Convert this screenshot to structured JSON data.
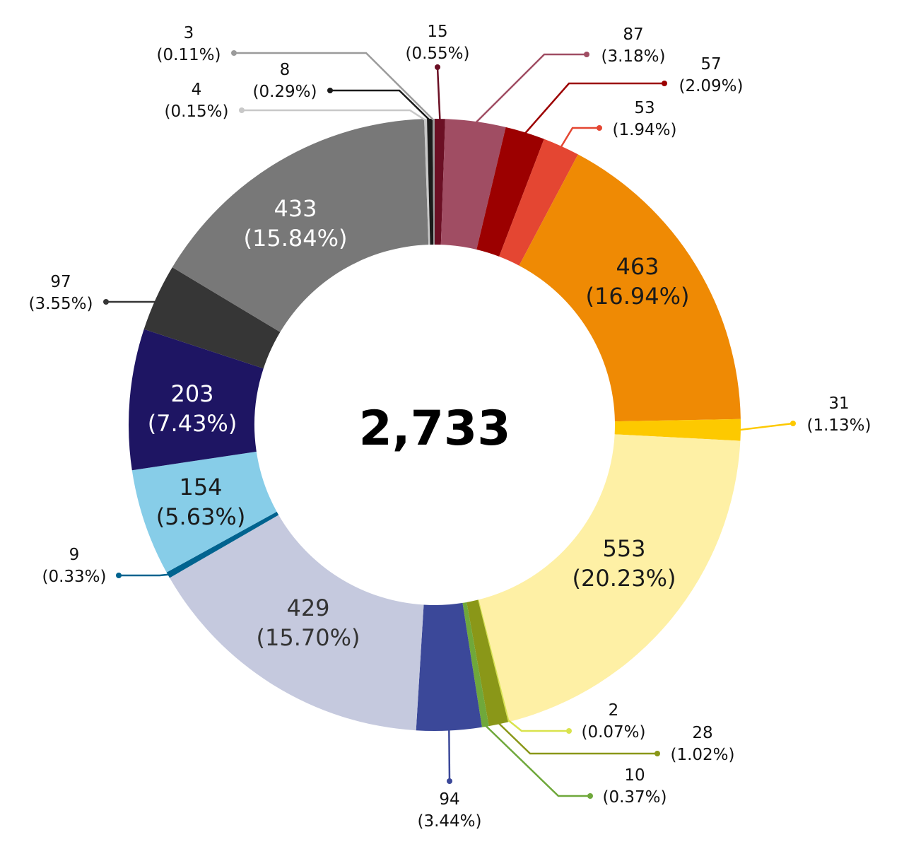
{
  "chart_data": {
    "type": "pie",
    "variant": "donut",
    "total_label": "2,733",
    "slices": [
      {
        "value": 15,
        "value_label": "15",
        "percent_label": "(0.55%)",
        "color": "#6b0f24"
      },
      {
        "value": 87,
        "value_label": "87",
        "percent_label": "(3.18%)",
        "color": "#a04d63"
      },
      {
        "value": 57,
        "value_label": "57",
        "percent_label": "(2.09%)",
        "color": "#9c0000"
      },
      {
        "value": 53,
        "value_label": "53",
        "percent_label": "(1.94%)",
        "color": "#e44632"
      },
      {
        "value": 463,
        "value_label": "463",
        "percent_label": "(16.94%)",
        "color": "#ef8a04"
      },
      {
        "value": 31,
        "value_label": "31",
        "percent_label": "(1.13%)",
        "color": "#fdc900"
      },
      {
        "value": 553,
        "value_label": "553",
        "percent_label": "(20.23%)",
        "color": "#fef0a5"
      },
      {
        "value": 2,
        "value_label": "2",
        "percent_label": "(0.07%)",
        "color": "#d9e34d"
      },
      {
        "value": 28,
        "value_label": "28",
        "percent_label": "(1.02%)",
        "color": "#8a9718"
      },
      {
        "value": 10,
        "value_label": "10",
        "percent_label": "(0.37%)",
        "color": "#6fa83b"
      },
      {
        "value": 94,
        "value_label": "94",
        "percent_label": "(3.44%)",
        "color": "#3b4899"
      },
      {
        "value": 429,
        "value_label": "429",
        "percent_label": "(15.70%)",
        "color": "#c5c9de"
      },
      {
        "value": 9,
        "value_label": "9",
        "percent_label": "(0.33%)",
        "color": "#01638f"
      },
      {
        "value": 154,
        "value_label": "154",
        "percent_label": "(5.63%)",
        "color": "#87cde8"
      },
      {
        "value": 203,
        "value_label": "203",
        "percent_label": "(7.43%)",
        "color": "#1e1563"
      },
      {
        "value": 97,
        "value_label": "97",
        "percent_label": "(3.55%)",
        "color": "#363636"
      },
      {
        "value": 433,
        "value_label": "433",
        "percent_label": "(15.84%)",
        "color": "#787878"
      },
      {
        "value": 4,
        "value_label": "4",
        "percent_label": "(0.15%)",
        "color": "#c8c8c8"
      },
      {
        "value": 8,
        "value_label": "8",
        "percent_label": "(0.29%)",
        "color": "#1a1a1a"
      },
      {
        "value": 3,
        "value_label": "3",
        "percent_label": "(0.11%)",
        "color": "#9b9b9b"
      }
    ]
  }
}
